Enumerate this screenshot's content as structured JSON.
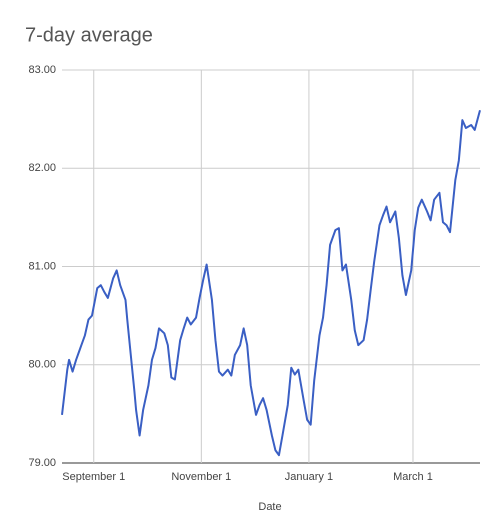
{
  "chart_data": {
    "type": "line",
    "title": "7-day average",
    "x_label": "Date",
    "x": [
      "08-14",
      "08-17",
      "08-18",
      "08-20",
      "08-22",
      "08-24",
      "08-25",
      "08-27",
      "08-29",
      "08-31",
      "09-03",
      "09-05",
      "09-07",
      "09-09",
      "09-12",
      "09-14",
      "09-16",
      "09-19",
      "09-20",
      "09-22",
      "09-24",
      "09-25",
      "09-27",
      "09-29",
      "10-02",
      "10-04",
      "10-06",
      "10-08",
      "10-11",
      "10-13",
      "10-15",
      "10-17",
      "10-20",
      "10-22",
      "10-24",
      "10-26",
      "10-29",
      "10-31",
      "11-02",
      "11-04",
      "11-07",
      "11-09",
      "11-11",
      "11-13",
      "11-16",
      "11-18",
      "11-20",
      "11-23",
      "11-25",
      "11-27",
      "11-29",
      "12-02",
      "12-04",
      "12-06",
      "12-08",
      "12-11",
      "12-13",
      "12-15",
      "12-17",
      "12-20",
      "12-22",
      "12-24",
      "12-26",
      "12-29",
      "12-31",
      "01-02",
      "01-04",
      "01-07",
      "01-09",
      "01-11",
      "01-13",
      "01-16",
      "01-18",
      "01-20",
      "01-22",
      "01-25",
      "01-27",
      "01-29",
      "02-01",
      "02-03",
      "02-05",
      "02-07",
      "02-10",
      "02-12",
      "02-14",
      "02-16",
      "02-19",
      "02-21",
      "02-23",
      "02-25",
      "02-28",
      "03-02",
      "03-04",
      "03-06",
      "03-09",
      "03-11",
      "03-13",
      "03-16",
      "03-18",
      "03-20",
      "03-22",
      "03-25",
      "03-27",
      "03-29",
      "03-31",
      "04-03",
      "04-05",
      "04-08"
    ],
    "series": [
      {
        "name": "7-day average",
        "color": "#3a5fc4",
        "values": [
          79.49,
          79.95,
          80.05,
          79.93,
          80.05,
          80.15,
          80.2,
          80.3,
          80.46,
          80.5,
          80.78,
          80.81,
          80.74,
          80.68,
          80.88,
          80.96,
          80.81,
          80.66,
          80.46,
          80.1,
          79.74,
          79.54,
          79.28,
          79.54,
          79.79,
          80.05,
          80.17,
          80.37,
          80.32,
          80.2,
          79.87,
          79.85,
          80.25,
          80.37,
          80.48,
          80.41,
          80.48,
          80.68,
          80.86,
          81.02,
          80.66,
          80.25,
          79.93,
          79.89,
          79.95,
          79.89,
          80.1,
          80.2,
          80.37,
          80.2,
          79.79,
          79.49,
          79.59,
          79.66,
          79.54,
          79.28,
          79.13,
          79.08,
          79.28,
          79.59,
          79.97,
          79.9,
          79.95,
          79.64,
          79.44,
          79.39,
          79.84,
          80.3,
          80.48,
          80.81,
          81.22,
          81.37,
          81.39,
          80.96,
          81.02,
          80.66,
          80.35,
          80.2,
          80.25,
          80.46,
          80.76,
          81.05,
          81.42,
          81.52,
          81.61,
          81.45,
          81.56,
          81.29,
          80.91,
          80.71,
          80.96,
          81.37,
          81.6,
          81.68,
          81.56,
          81.47,
          81.68,
          81.75,
          81.45,
          81.42,
          81.35,
          81.88,
          82.08,
          82.49,
          82.41,
          82.44,
          82.39,
          82.59
        ]
      }
    ],
    "xlim": [
      "08-14",
      "04-08"
    ],
    "xticks": [
      {
        "value": "09-01",
        "label": "September 1"
      },
      {
        "value": "11-01",
        "label": "November 1"
      },
      {
        "value": "01-01",
        "label": "January 1"
      },
      {
        "value": "03-01",
        "label": "March 1"
      }
    ],
    "ylim": [
      79,
      83
    ],
    "yticks": [
      {
        "value": 79,
        "label": "79.00"
      },
      {
        "value": 80,
        "label": "80.00"
      },
      {
        "value": 81,
        "label": "81.00"
      },
      {
        "value": 82,
        "label": "82.00"
      },
      {
        "value": 83,
        "label": "83.00"
      }
    ],
    "grid": true
  }
}
